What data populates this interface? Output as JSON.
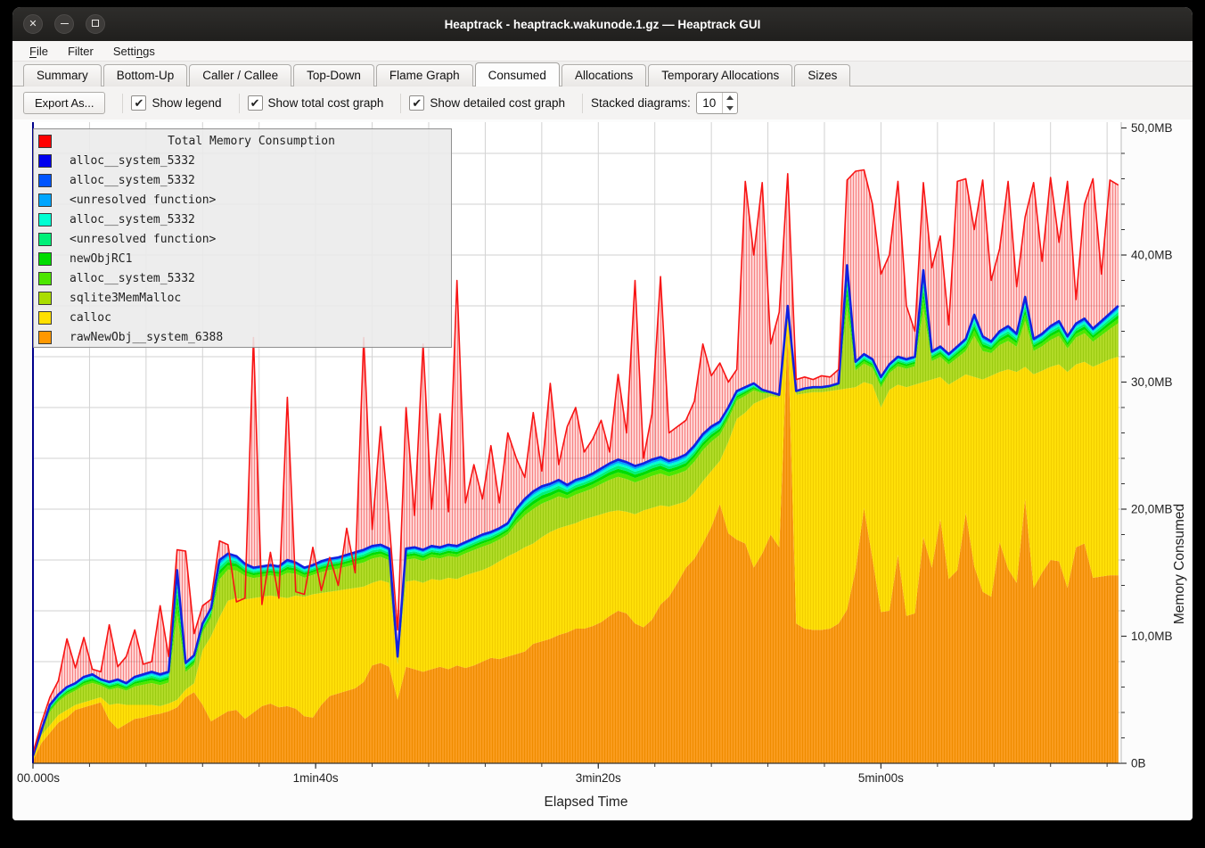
{
  "window": {
    "title": "Heaptrack - heaptrack.wakunode.1.gz — Heaptrack GUI",
    "controls": {
      "close": "✕",
      "minimize": "–",
      "maximize": "▢"
    }
  },
  "menu": {
    "items": [
      {
        "label": "File",
        "underline": 0
      },
      {
        "label": "Filter",
        "underline": -1
      },
      {
        "label": "Settings",
        "underline": 5
      }
    ]
  },
  "tabs": {
    "active": "Consumed",
    "items": [
      "Summary",
      "Bottom-Up",
      "Caller / Callee",
      "Top-Down",
      "Flame Graph",
      "Consumed",
      "Allocations",
      "Temporary Allocations",
      "Sizes"
    ]
  },
  "toolbar": {
    "export_label": "Export As...",
    "checkboxes": [
      {
        "label": "Show legend",
        "checked": true
      },
      {
        "label": "Show total cost graph",
        "checked": true
      },
      {
        "label": "Show detailed cost graph",
        "checked": true
      }
    ],
    "stacked_label": "Stacked diagrams:",
    "stacked_value": "10",
    "check_glyph": "✔"
  },
  "chart_data": {
    "type": "area",
    "title": "Total Memory Consumption",
    "xlabel": "Elapsed Time",
    "ylabel": "Memory Consumed",
    "ylim": [
      0,
      50
    ],
    "xlim_sec": [
      0,
      385
    ],
    "x_step_sec": 3,
    "grid": {
      "x_step_sec": 20,
      "y_step_mb": 4
    },
    "x_ticks": [
      {
        "sec": 0,
        "label": "00.000s"
      },
      {
        "sec": 100,
        "label": "1min40s"
      },
      {
        "sec": 200,
        "label": "3min20s"
      },
      {
        "sec": 300,
        "label": "5min00s"
      }
    ],
    "x_minor_tick_sec": 20,
    "y_ticks": [
      {
        "mb": 0,
        "label": "0B"
      },
      {
        "mb": 10,
        "label": "10,0MB"
      },
      {
        "mb": 20,
        "label": "20,0MB"
      },
      {
        "mb": 30,
        "label": "30,0MB"
      },
      {
        "mb": 40,
        "label": "40,0MB"
      },
      {
        "mb": 50,
        "label": "50,0MB"
      }
    ],
    "y_minor_tick_mb": 2,
    "legend": [
      {
        "label": "Total Memory Consumption",
        "color": "#ff0000",
        "is_title": true
      },
      {
        "label": "alloc__system_5332",
        "color": "#0000ee"
      },
      {
        "label": "alloc__system_5332",
        "color": "#0055ff"
      },
      {
        "label": "<unresolved function>",
        "color": "#00a6ff"
      },
      {
        "label": "alloc__system_5332",
        "color": "#00ffd2"
      },
      {
        "label": "<unresolved function>",
        "color": "#00f078"
      },
      {
        "label": "newObjRC1",
        "color": "#00dc00"
      },
      {
        "label": "alloc__system_5332",
        "color": "#4ce600"
      },
      {
        "label": "sqlite3MemMalloc",
        "color": "#aadd00"
      },
      {
        "label": "calloc",
        "color": "#ffe000"
      },
      {
        "label": "rawNewObj__system_6388",
        "color": "#ff9800"
      }
    ],
    "series_mb": {
      "rawNewObj__system_6388_top": [
        0.2,
        1.6,
        2.4,
        3.2,
        3.6,
        4.2,
        4.4,
        4.6,
        4.8,
        3.4,
        2.7,
        3.1,
        3.5,
        3.6,
        3.8,
        3.9,
        4.1,
        4.4,
        5.2,
        5.6,
        4.6,
        3.3,
        3.7,
        4.1,
        4.2,
        3.5,
        4,
        4.5,
        4.7,
        4.4,
        4.5,
        4.3,
        3.7,
        3.6,
        4.6,
        5.3,
        5.5,
        5.7,
        5.9,
        6.4,
        7.7,
        7.9,
        7.6,
        5,
        7.6,
        7.4,
        7.2,
        7.4,
        7.6,
        7.4,
        7.7,
        7.5,
        7.7,
        8,
        8.3,
        8.2,
        8.4,
        8.6,
        8.8,
        9.4,
        9.6,
        9.8,
        10.1,
        10.3,
        10.6,
        10.6,
        10.8,
        11.1,
        11.6,
        12,
        11.8,
        11,
        10.7,
        11.3,
        12.5,
        13.1,
        14.2,
        15.4,
        16.1,
        17.3,
        18.6,
        20.4,
        18.1,
        17.6,
        17.3,
        15.4,
        16.5,
        18,
        17,
        34,
        11,
        10.6,
        10.5,
        10.5,
        10.6,
        11,
        12.1,
        15.2,
        20.1,
        16.1,
        11.9,
        12,
        16.4,
        11.6,
        11.8,
        17.8,
        15.4,
        19.2,
        14.5,
        15.2,
        19.7,
        15.5,
        13.5,
        13.1,
        17.4,
        15.3,
        14.2,
        20.8,
        13.8,
        15,
        16,
        15.9,
        13.8,
        17,
        17.3,
        14.6,
        14.7,
        14.8,
        14.8
      ],
      "calloc_top": [
        0.4,
        2.2,
        3,
        3.8,
        4.2,
        4.6,
        4.8,
        5,
        5.2,
        4.6,
        4.7,
        4.6,
        4.6,
        4.6,
        4.6,
        4.5,
        4.7,
        5,
        5.8,
        6.3,
        8.9,
        10,
        11.5,
        12.8,
        13,
        12.9,
        13,
        13.1,
        13.2,
        13.1,
        13,
        13.2,
        13.1,
        13.3,
        13.4,
        13.5,
        13.6,
        13.7,
        13.8,
        13.9,
        14.2,
        14.4,
        14.2,
        7.8,
        14.3,
        14.4,
        14.2,
        14.5,
        14.4,
        14.6,
        14.5,
        14.8,
        15,
        15.2,
        15.5,
        15.9,
        16.3,
        16.6,
        17,
        17.3,
        17.8,
        18.2,
        18.5,
        18.7,
        18.9,
        19.2,
        19.4,
        19.6,
        19.8,
        19.9,
        19.8,
        19.6,
        19.9,
        20.1,
        20.3,
        20.2,
        20.4,
        20.6,
        21.3,
        22.2,
        23,
        23.8,
        25.3,
        27.1,
        27.6,
        28.3,
        28.6,
        28.9,
        28.8,
        35,
        29,
        29.1,
        29.2,
        29.2,
        29.3,
        29.4,
        29.5,
        29.6,
        30,
        29.8,
        28,
        29.4,
        29.8,
        29.6,
        29.8,
        30,
        30.2,
        30.4,
        29.8,
        30.2,
        30.6,
        30.4,
        30.2,
        30.5,
        30.8,
        31,
        30.8,
        31.2,
        30.6,
        30.9,
        31.2,
        31.4,
        30.8,
        31.4,
        31.6,
        31.2,
        31.5,
        31.8,
        32
      ],
      "stack_top": [
        0.6,
        2.6,
        4.6,
        5.4,
        6,
        6.3,
        6.8,
        7,
        6.6,
        6.4,
        6.6,
        6.3,
        6.8,
        7,
        7.2,
        7,
        7.2,
        15.2,
        7.9,
        8.5,
        11,
        12.2,
        16,
        16.5,
        16.3,
        15.7,
        15.4,
        15.5,
        15.6,
        15.5,
        16,
        15.8,
        15.4,
        15.6,
        15.9,
        16.1,
        16.2,
        16.4,
        16.6,
        16.8,
        17.1,
        17.2,
        16.9,
        8.4,
        16.9,
        17,
        16.8,
        17.1,
        17,
        17.2,
        17.1,
        17.4,
        17.7,
        18,
        18.2,
        18.5,
        18.9,
        20,
        20.8,
        21.4,
        21.8,
        22,
        22.3,
        21.9,
        22.3,
        22.5,
        22.8,
        23.2,
        23.6,
        23.9,
        23.7,
        23.4,
        23.6,
        23.9,
        24.1,
        23.8,
        24,
        24.3,
        25,
        25.9,
        26.5,
        26.9,
        28,
        29.3,
        29.6,
        29.9,
        29.4,
        29.2,
        29,
        36,
        29.3,
        29.5,
        29.6,
        29.6,
        29.7,
        29.9,
        39.2,
        31.6,
        32.2,
        31.8,
        30.4,
        31.4,
        32,
        31.8,
        32,
        38.8,
        32.4,
        32.8,
        32.2,
        32.8,
        33.4,
        35.3,
        33.6,
        33.2,
        34,
        34.4,
        33.8,
        36.7,
        33.4,
        33.8,
        34.4,
        34.8,
        33.6,
        34.6,
        35,
        34.2,
        34.8,
        35.4,
        36
      ],
      "total_consumed": [
        0.8,
        3.2,
        5.2,
        6.5,
        9.8,
        7.5,
        9.9,
        7.4,
        7.2,
        10.9,
        7.6,
        8.4,
        10.5,
        7.8,
        8,
        12.4,
        8.4,
        16.8,
        16.7,
        10.2,
        12.4,
        12.9,
        17.5,
        17.2,
        12.7,
        13,
        33.5,
        12.5,
        16.6,
        13,
        28.8,
        13.5,
        13.3,
        17,
        13.6,
        16.2,
        14,
        18.5,
        15,
        33.5,
        18.4,
        26.5,
        19,
        10.5,
        28,
        19.5,
        33,
        20,
        27.5,
        19.8,
        38,
        20.5,
        23.5,
        20.8,
        25,
        20.5,
        26,
        24,
        22.5,
        27.6,
        23,
        29.9,
        23.5,
        26.5,
        28,
        24.5,
        25.5,
        27,
        24.5,
        30.6,
        26,
        38,
        24,
        27.5,
        38.3,
        26,
        26.5,
        27,
        28.5,
        33,
        30.5,
        31.5,
        30,
        31,
        45.8,
        40,
        45.7,
        33,
        35.5,
        46.4,
        30.2,
        30.4,
        30.2,
        30.5,
        30.4,
        31,
        45.9,
        46.6,
        46.7,
        44,
        38.5,
        40,
        45.8,
        36,
        34,
        45.7,
        39,
        41.5,
        34.5,
        45.8,
        46,
        42,
        45.9,
        38,
        40.5,
        45.8,
        37.5,
        43,
        45.7,
        39.5,
        46.1,
        41,
        45.8,
        36.5,
        44,
        46,
        38.5,
        45.9,
        45.5
      ]
    },
    "band_between_calloc_and_stack_split": [
      {
        "name": "sqlite3MemMalloc",
        "color": "#b2dc28",
        "fraction": 0.66,
        "hatch": true
      },
      {
        "name": "alloc__system_5332",
        "color": "#4ce600",
        "fraction": 0.09
      },
      {
        "name": "newObjRC1",
        "color": "#00dc00",
        "fraction": 0.07
      },
      {
        "name": "<unresolved function>",
        "color": "#00f078",
        "fraction": 0.06
      },
      {
        "name": "alloc__system_5332",
        "color": "#00ffd2",
        "fraction": 0.05
      },
      {
        "name": "<unresolved function>",
        "color": "#00a6ff",
        "fraction": 0.04
      },
      {
        "name": "alloc__system_5332",
        "color": "#0055ff",
        "fraction": 0.03
      }
    ],
    "colors": {
      "raw_fill": "#fb9d20",
      "raw_hatch": "#ef8c00",
      "calloc_fill": "#ffe008",
      "calloc_hatch": "#f2ce00",
      "sqlite_fill": "#b2dc28",
      "sqlite_hatch": "#9ccb12",
      "stack_line": "#1122e0",
      "total_line": "#f81414",
      "total_fill": "rgba(255,70,70,0.22)",
      "total_hatch": "rgba(238,30,30,0.45)",
      "grid": "#d2d2d2",
      "axis_left": "#00008b",
      "axis_bottom": "#333333",
      "tick": "#333333",
      "plot_bg": "#ffffff",
      "label": "#222222"
    }
  }
}
